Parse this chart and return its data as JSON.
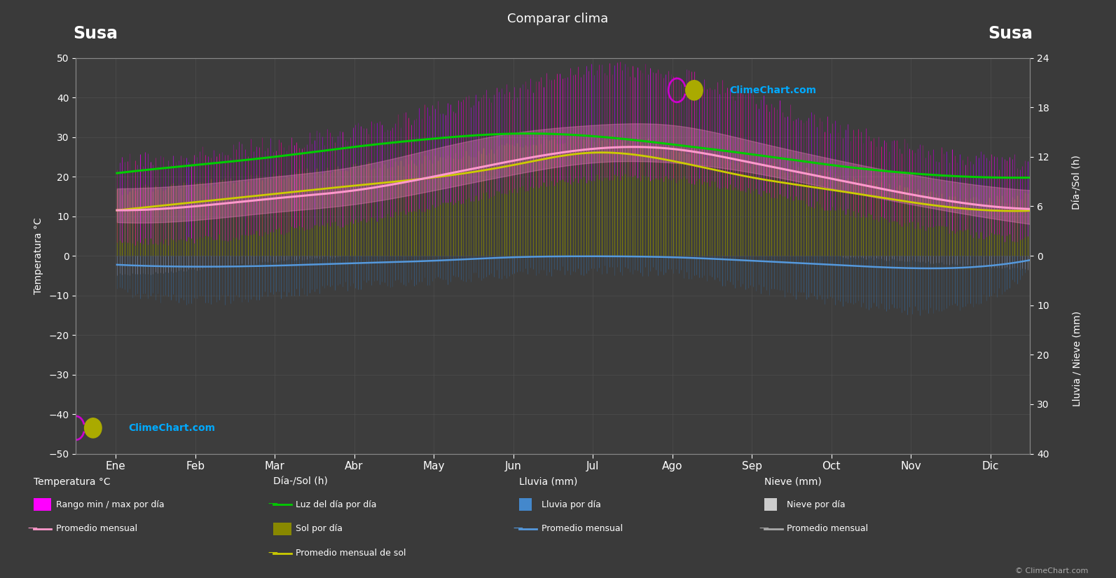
{
  "title": "Comparar clima",
  "location_left": "Susa",
  "location_right": "Susa",
  "bg_color": "#3a3a3a",
  "plot_bg_color": "#3d3d3d",
  "grid_color": "#555555",
  "months": [
    "Ene",
    "Feb",
    "Mar",
    "Abr",
    "May",
    "Jun",
    "Jul",
    "Ago",
    "Sep",
    "Oct",
    "Nov",
    "Dic"
  ],
  "temp_ylim": [
    -50,
    50
  ],
  "temp_avg": [
    11.5,
    12.5,
    14.5,
    16.5,
    20.0,
    24.0,
    27.0,
    27.0,
    23.5,
    19.5,
    15.5,
    12.5
  ],
  "temp_min_avg": [
    8.5,
    9.0,
    11.0,
    13.0,
    16.5,
    20.5,
    23.5,
    23.5,
    21.0,
    17.0,
    13.0,
    9.5
  ],
  "temp_max_avg": [
    17.0,
    18.0,
    20.0,
    22.5,
    27.0,
    31.0,
    33.0,
    33.0,
    29.0,
    24.5,
    20.5,
    17.5
  ],
  "temp_daily_min": [
    4.0,
    4.5,
    6.5,
    9.0,
    13.0,
    17.0,
    20.0,
    20.0,
    17.0,
    12.5,
    8.5,
    5.5
  ],
  "temp_daily_max": [
    22.0,
    23.5,
    26.5,
    29.5,
    35.0,
    40.0,
    45.0,
    44.0,
    38.0,
    31.0,
    25.5,
    22.5
  ],
  "daylight_hours": [
    10.0,
    11.0,
    12.0,
    13.2,
    14.2,
    14.8,
    14.5,
    13.5,
    12.3,
    11.0,
    10.0,
    9.5
  ],
  "sun_hours_avg": [
    5.5,
    6.5,
    7.5,
    8.5,
    9.5,
    11.0,
    12.5,
    11.5,
    9.5,
    8.0,
    6.5,
    5.5
  ],
  "sun_hours_daily": [
    7.5,
    8.5,
    9.5,
    10.5,
    11.5,
    13.0,
    14.0,
    13.0,
    11.0,
    9.5,
    7.5,
    6.5
  ],
  "rain_avg_mm": [
    1.8,
    2.2,
    2.0,
    1.5,
    1.0,
    0.3,
    0.1,
    0.3,
    1.0,
    1.8,
    2.5,
    2.0
  ],
  "rain_daily_max_mm": [
    6.0,
    8.0,
    7.0,
    5.0,
    4.0,
    2.5,
    2.0,
    2.5,
    5.5,
    8.0,
    10.0,
    7.0
  ],
  "snow_avg_mm": [
    0.8,
    0.5,
    0.1,
    0.0,
    0.0,
    0.0,
    0.0,
    0.0,
    0.0,
    0.0,
    0.1,
    0.4
  ],
  "snow_daily_max_mm": [
    3.5,
    2.5,
    0.8,
    0.0,
    0.0,
    0.0,
    0.0,
    0.0,
    0.0,
    0.0,
    0.8,
    2.0
  ],
  "sun_scale": 2.0833,
  "rain_scale": 1.25
}
